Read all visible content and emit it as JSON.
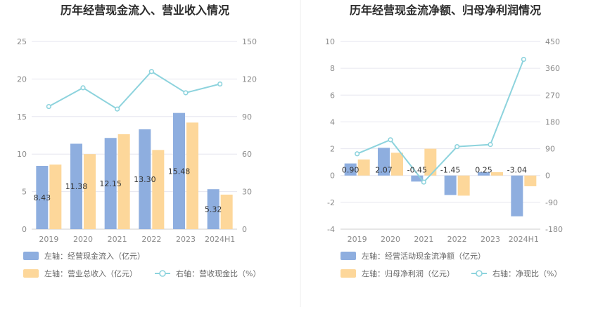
{
  "colors": {
    "bar1": "#8eaedf",
    "bar2": "#fdd79a",
    "line": "#8dd3dd",
    "grid": "#e6e6ef",
    "text": "#8a8a8a"
  },
  "chart_data": [
    {
      "type": "bar",
      "title": "历年经营现金流入、营业收入情况",
      "categories": [
        "2019",
        "2020",
        "2021",
        "2022",
        "2023",
        "2024H1"
      ],
      "left_ticks": [
        "25",
        "20",
        "15",
        "10",
        "5",
        "0"
      ],
      "right_ticks": [
        "150",
        "120",
        "90",
        "60",
        "30",
        "0"
      ],
      "ylim_left": [
        0,
        25
      ],
      "ylim_right": [
        0,
        150
      ],
      "grid": true,
      "legend_position": "bottom",
      "series": [
        {
          "name": "左轴：经营现金流入（亿元）",
          "kind": "bar",
          "axis": "left",
          "values": [
            8.43,
            11.38,
            12.15,
            13.3,
            15.48,
            5.32
          ],
          "labels": [
            "8.43",
            "11.38",
            "12.15",
            "13.30",
            "15.48",
            "5.32"
          ]
        },
        {
          "name": "左轴：营业总收入（亿元）",
          "kind": "bar",
          "axis": "left",
          "values": [
            8.6,
            10.0,
            12.65,
            10.55,
            14.2,
            4.6
          ]
        },
        {
          "name": "右轴：营收现金比（%）",
          "kind": "line",
          "axis": "right",
          "values": [
            98,
            113,
            96,
            126,
            109,
            116
          ]
        }
      ]
    },
    {
      "type": "bar",
      "title": "历年经营现金流净额、归母净利润情况",
      "categories": [
        "2019",
        "2020",
        "2021",
        "2022",
        "2023",
        "2024H1"
      ],
      "left_ticks": [
        "10",
        "8",
        "6",
        "4",
        "2",
        "0",
        "-2",
        "-4"
      ],
      "right_ticks": [
        "450",
        "360",
        "270",
        "180",
        "90",
        "0",
        "-90",
        "-180"
      ],
      "ylim_left": [
        -4,
        10
      ],
      "ylim_right": [
        -180,
        450
      ],
      "grid": true,
      "legend_position": "bottom",
      "series": [
        {
          "name": "左轴：经营活动现金流净额（亿元）",
          "kind": "bar",
          "axis": "left",
          "values": [
            0.9,
            2.07,
            -0.45,
            -1.45,
            0.25,
            -3.04
          ],
          "labels": [
            "0.90",
            "2.07",
            "-0.45",
            "-1.45",
            "0.25",
            "-3.04"
          ]
        },
        {
          "name": "左轴：归母净利润（亿元）",
          "kind": "bar",
          "axis": "left",
          "values": [
            1.2,
            1.7,
            2.0,
            -1.5,
            0.25,
            -0.8
          ]
        },
        {
          "name": "右轴：净现比（%）",
          "kind": "line",
          "axis": "right",
          "values": [
            73,
            120,
            -22,
            97,
            104,
            390
          ]
        }
      ]
    }
  ]
}
